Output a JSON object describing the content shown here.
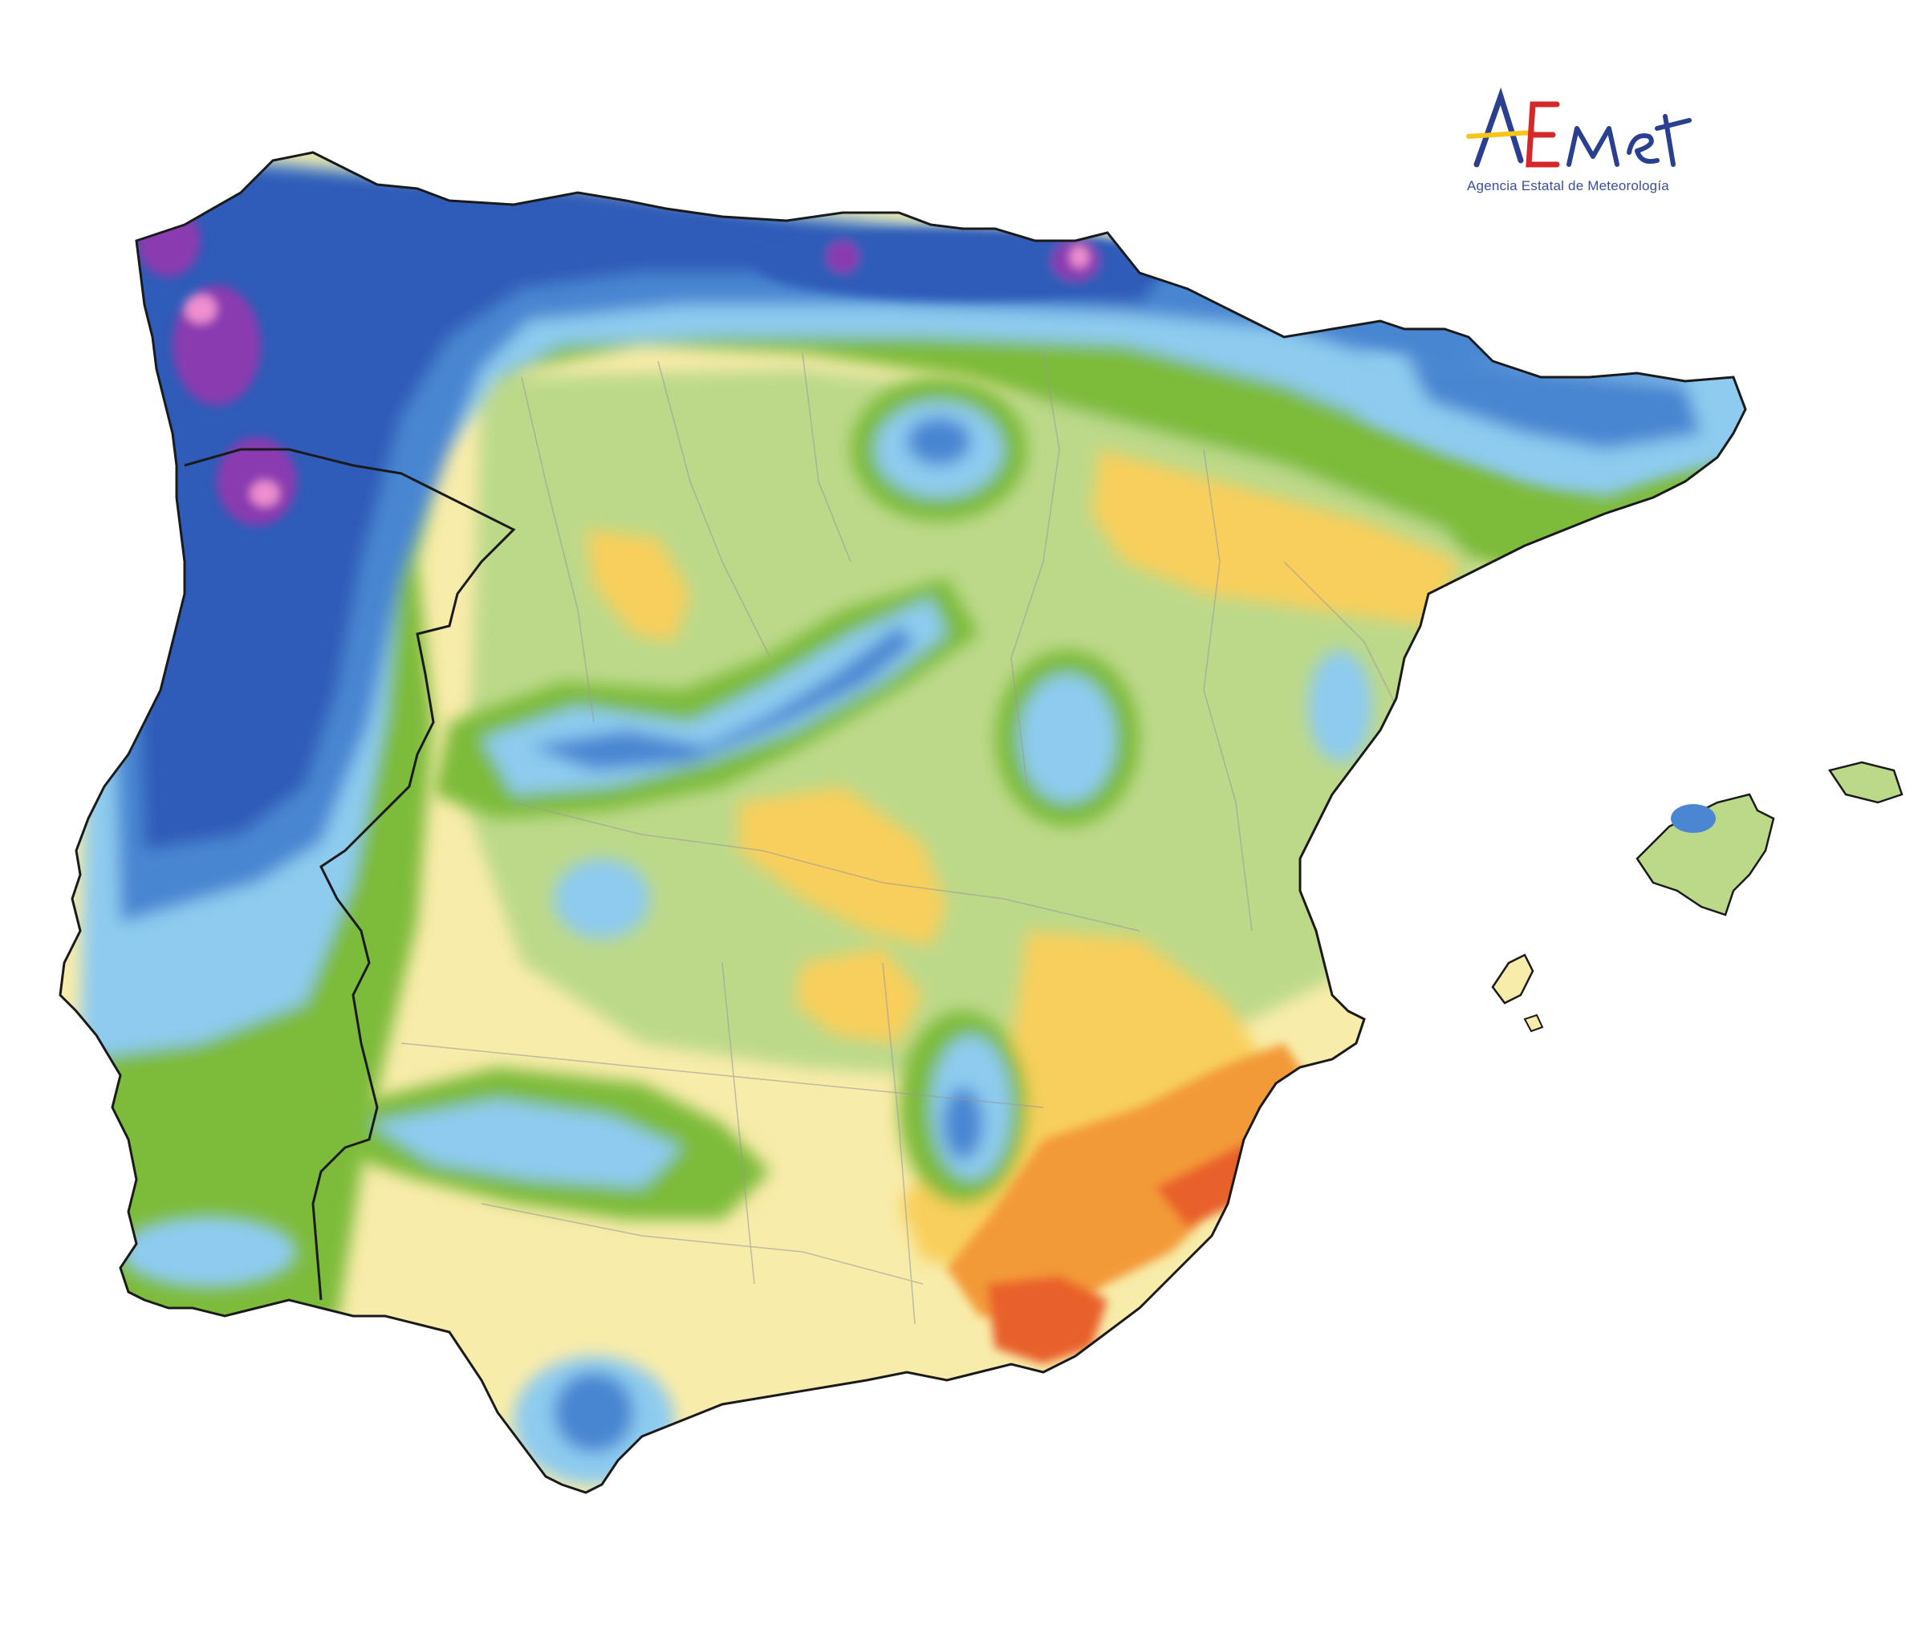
{
  "logo": {
    "wordmark": "AEMet",
    "tagline": "Agencia Estatal de Meteorología"
  },
  "map": {
    "region": "Iberian Peninsula and Balearic Islands",
    "palette": {
      "magenta": "#8a3bb0",
      "pink": "#f08fd0",
      "dark_blue": "#2e5bb8",
      "mid_blue": "#4a86d2",
      "light_blue": "#8ecbef",
      "green": "#7dbb3a",
      "light_green": "#bcd98a",
      "pale_yellow": "#f8ecaa",
      "yellow": "#f8cf5c",
      "orange": "#f39a38",
      "red_orange": "#e8602a",
      "border": "#1a1a1a",
      "province_line": "#9a9a9a"
    }
  }
}
